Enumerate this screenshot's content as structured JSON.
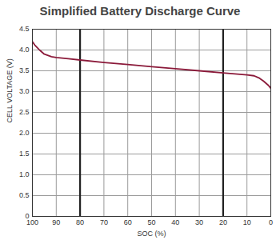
{
  "chart_data": {
    "type": "line",
    "title": "Simplified Battery Discharge Curve",
    "x_label": "SOC (%)",
    "y_label": "CELL VOLTAGE (V)",
    "x": [
      100,
      99,
      97,
      95,
      92,
      90,
      85,
      80,
      70,
      60,
      50,
      40,
      30,
      20,
      10,
      7,
      5,
      3,
      1,
      0
    ],
    "values": [
      4.2,
      4.12,
      4.0,
      3.9,
      3.84,
      3.82,
      3.79,
      3.76,
      3.7,
      3.65,
      3.6,
      3.55,
      3.5,
      3.45,
      3.4,
      3.38,
      3.33,
      3.25,
      3.15,
      3.08
    ],
    "color": "#8b1a3a",
    "xlim": [
      100,
      0
    ],
    "xticks": [
      100,
      90,
      80,
      70,
      60,
      50,
      40,
      30,
      20,
      10,
      0
    ],
    "ylim": [
      0,
      4.5
    ],
    "yticks": [
      0,
      0.5,
      {
        "value": 1,
        "label": "1.0"
      },
      1.5,
      {
        "value": 2,
        "label": "2.0"
      },
      2.5,
      {
        "value": 3,
        "label": "3.0"
      },
      3.5,
      {
        "value": 4,
        "label": "4.0"
      },
      4.5
    ],
    "marked_x": [
      80,
      20
    ],
    "grid": true
  }
}
